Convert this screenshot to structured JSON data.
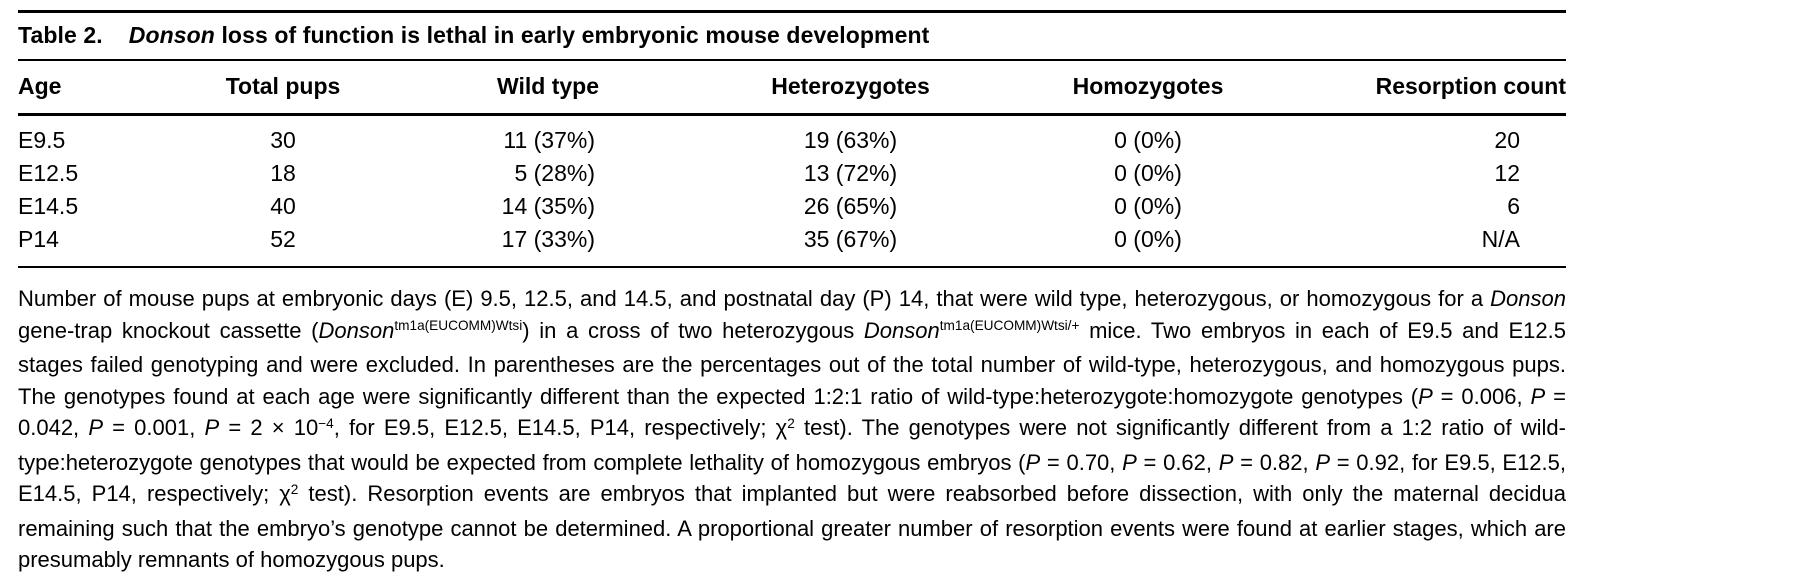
{
  "title_segments": [
    {
      "text": "Table 2.",
      "style": "title-label"
    },
    {
      "text": "Donson",
      "style": "italic"
    },
    {
      "text": " loss of function is lethal in early embryonic mouse development",
      "style": ""
    }
  ],
  "columns": [
    "Age",
    "Total pups",
    "Wild type",
    "Heterozygotes",
    "Homozygotes",
    "Resorption count"
  ],
  "rows": [
    {
      "age": "E9.5",
      "total_pups": "30",
      "wild_type": "11 (37%)",
      "heterozygotes": "19 (63%)",
      "homozygotes": "0 (0%)",
      "resorption_count": "20"
    },
    {
      "age": "E12.5",
      "total_pups": "18",
      "wild_type": "5 (28%)",
      "heterozygotes": "13 (72%)",
      "homozygotes": "0 (0%)",
      "resorption_count": "12"
    },
    {
      "age": "E14.5",
      "total_pups": "40",
      "wild_type": "14 (35%)",
      "heterozygotes": "26 (65%)",
      "homozygotes": "0 (0%)",
      "resorption_count": "6"
    },
    {
      "age": "P14",
      "total_pups": "52",
      "wild_type": "17 (33%)",
      "heterozygotes": "35 (67%)",
      "homozygotes": "0 (0%)",
      "resorption_count": "N/A"
    }
  ],
  "footnote_segments": [
    {
      "text": "Number of mouse pups at embryonic days (E) 9.5, 12.5, and 14.5, and postnatal day (P) 14, that were wild type, heterozygous, or homozygous for a ",
      "style": ""
    },
    {
      "text": "Donson",
      "style": "italic"
    },
    {
      "text": " gene-trap knockout cassette (",
      "style": ""
    },
    {
      "text": "Donson",
      "style": "italic"
    },
    {
      "text": "tm1a(EUCOMM)Wtsi",
      "style": "sup"
    },
    {
      "text": ") in a cross of two heterozygous ",
      "style": ""
    },
    {
      "text": "Donson",
      "style": "italic"
    },
    {
      "text": "tm1a(EUCOMM)Wtsi/+",
      "style": "sup"
    },
    {
      "text": " mice. Two embryos in each of E9.5 and E12.5 stages failed genotyping and were excluded. In parentheses are the percentages out of the total number of wild-type, heterozygous, and homozygous pups. The genotypes found at each age were significantly different than the expected 1:2:1 ratio of wild-type:heterozygote:homozygote genotypes (",
      "style": ""
    },
    {
      "text": "P",
      "style": "italic"
    },
    {
      "text": " = 0.006, ",
      "style": ""
    },
    {
      "text": "P",
      "style": "italic"
    },
    {
      "text": " = 0.042, ",
      "style": ""
    },
    {
      "text": "P",
      "style": "italic"
    },
    {
      "text": " = 0.001, ",
      "style": ""
    },
    {
      "text": "P",
      "style": "italic"
    },
    {
      "text": " = 2 × 10",
      "style": ""
    },
    {
      "text": "−4",
      "style": "sup"
    },
    {
      "text": ", for E9.5, E12.5, E14.5, P14, respectively; χ",
      "style": ""
    },
    {
      "text": "2",
      "style": "sup"
    },
    {
      "text": " test). The genotypes were not significantly different from a 1:2 ratio of wild-type:heterozygote genotypes that would be expected from complete lethality of homozygous embryos (",
      "style": ""
    },
    {
      "text": "P",
      "style": "italic"
    },
    {
      "text": " = 0.70, ",
      "style": ""
    },
    {
      "text": "P",
      "style": "italic"
    },
    {
      "text": " = 0.62, ",
      "style": ""
    },
    {
      "text": "P",
      "style": "italic"
    },
    {
      "text": " = 0.82, ",
      "style": ""
    },
    {
      "text": "P",
      "style": "italic"
    },
    {
      "text": " = 0.92, for E9.5, E12.5, E14.5, P14, respectively; χ",
      "style": ""
    },
    {
      "text": "2",
      "style": "sup"
    },
    {
      "text": " test). Resorption events are embryos that implanted but were reabsorbed before dissection, with only the maternal decidua remaining such that the embryo’s genotype cannot be determined. A proportional greater number of resorption events were found at earlier stages, which are presumably remnants of homozygous pups.",
      "style": ""
    }
  ]
}
